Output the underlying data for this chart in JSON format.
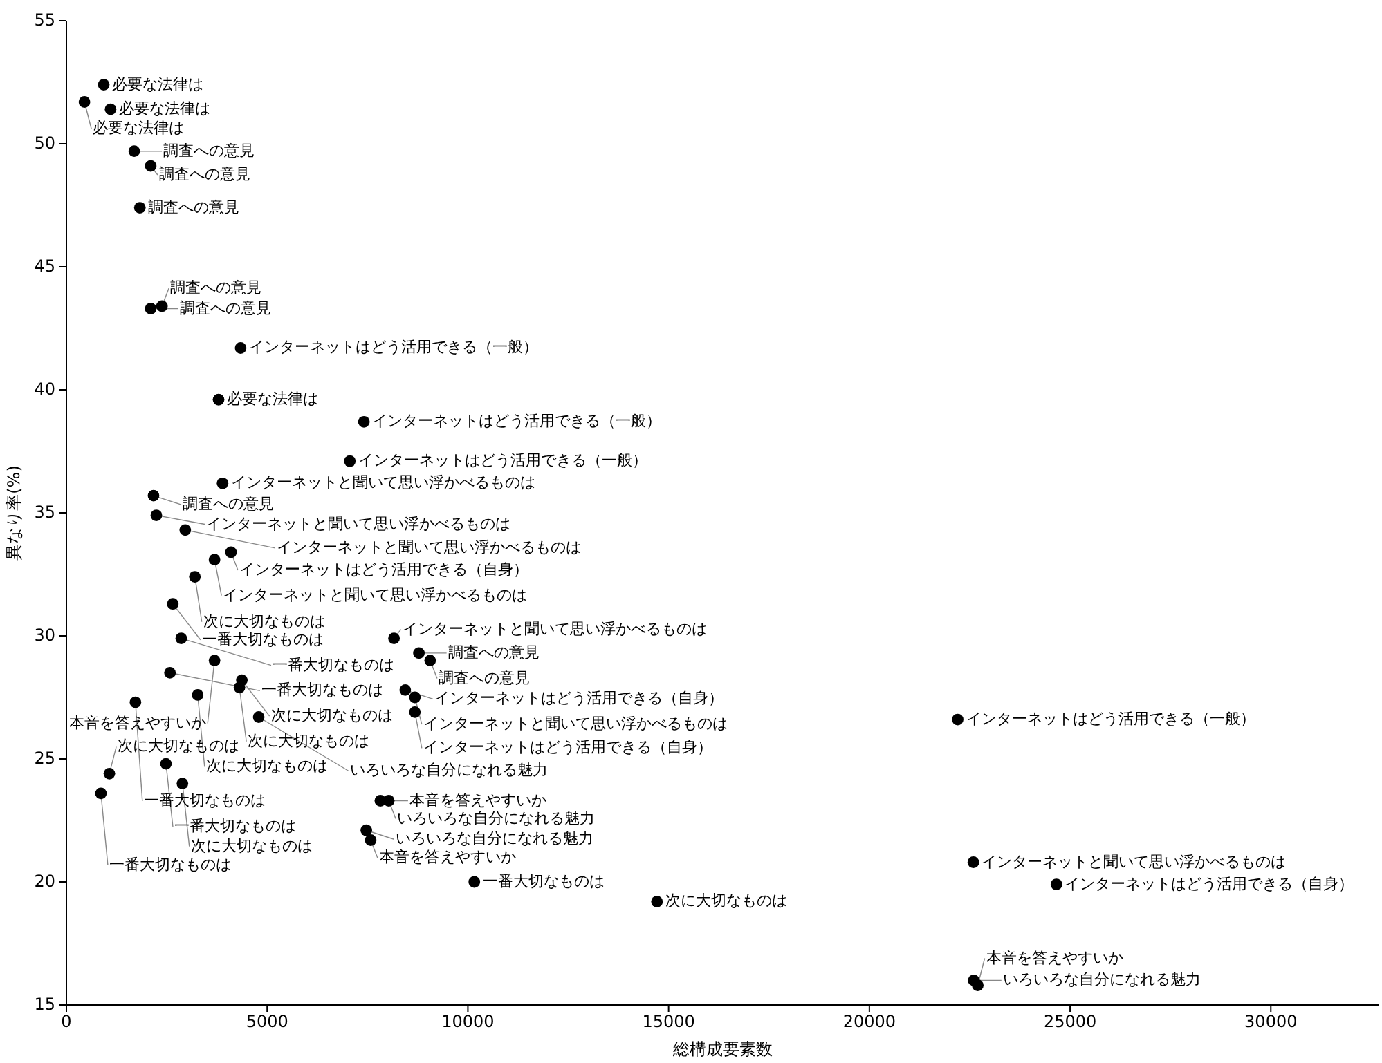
{
  "chart_data": {
    "type": "scatter",
    "xlabel": "総構成要素数",
    "ylabel": "異なり率(%)",
    "color": "#000000",
    "marker": "circle",
    "xlim": [
      0,
      32700
    ],
    "ylim": [
      15,
      55
    ],
    "xticks": [
      0,
      5000,
      10000,
      15000,
      20000,
      25000,
      30000
    ],
    "yticks": [
      15,
      20,
      25,
      30,
      35,
      40,
      45,
      50,
      55
    ],
    "x": [
      930,
      450,
      1100,
      1690,
      2100,
      1830,
      2100,
      2380,
      4340,
      3790,
      7410,
      7060,
      3890,
      2170,
      2240,
      2960,
      4100,
      3690,
      3200,
      2650,
      2860,
      8160,
      8780,
      9060,
      3690,
      2580,
      4370,
      4310,
      8440,
      3270,
      1720,
      8680,
      8680,
      4790,
      2480,
      1070,
      2890,
      860,
      7820,
      8030,
      7470,
      7580,
      10160,
      14710,
      22200,
      22590,
      24660,
      22600,
      22700
    ],
    "values": [
      52.4,
      51.7,
      51.4,
      49.7,
      49.1,
      47.4,
      43.3,
      43.4,
      41.7,
      39.6,
      38.7,
      37.1,
      36.2,
      35.7,
      34.9,
      34.3,
      33.4,
      33.1,
      32.4,
      31.3,
      29.9,
      29.9,
      29.3,
      29.0,
      29.0,
      28.5,
      28.2,
      27.9,
      27.8,
      27.6,
      27.3,
      27.5,
      26.9,
      26.7,
      24.8,
      24.4,
      24.0,
      23.6,
      23.3,
      23.3,
      22.1,
      21.7,
      20.0,
      19.2,
      26.6,
      20.8,
      19.9,
      16.0,
      15.8
    ],
    "annotations": [
      {
        "text": "必要な法律は",
        "x": 930,
        "y": 52.4
      },
      {
        "text": "必要な法律は",
        "x": 450,
        "y": 51.7
      },
      {
        "text": "必要な法律は",
        "x": 1100,
        "y": 51.4
      },
      {
        "text": "調査への意見",
        "x": 1690,
        "y": 49.7
      },
      {
        "text": "調査への意見",
        "x": 2100,
        "y": 49.1
      },
      {
        "text": "調査への意見",
        "x": 1830,
        "y": 47.4
      },
      {
        "text": "調査への意見",
        "x": 2100,
        "y": 43.3
      },
      {
        "text": "調査への意見",
        "x": 2380,
        "y": 43.4
      },
      {
        "text": "インターネットはどう活用できる（一般）",
        "x": 4340,
        "y": 41.7
      },
      {
        "text": "必要な法律は",
        "x": 3790,
        "y": 39.6
      },
      {
        "text": "インターネットはどう活用できる（一般）",
        "x": 7410,
        "y": 38.7
      },
      {
        "text": "インターネットはどう活用できる（一般）",
        "x": 7060,
        "y": 37.1
      },
      {
        "text": "インターネットと聞いて思い浮かべるものは",
        "x": 3890,
        "y": 36.2
      },
      {
        "text": "調査への意見",
        "x": 2170,
        "y": 35.7
      },
      {
        "text": "インターネットと聞いて思い浮かべるものは",
        "x": 2240,
        "y": 34.9
      },
      {
        "text": "インターネットと聞いて思い浮かべるものは",
        "x": 2960,
        "y": 34.3
      },
      {
        "text": "インターネットはどう活用できる（自身）",
        "x": 4100,
        "y": 33.4
      },
      {
        "text": "インターネットと聞いて思い浮かべるものは",
        "x": 3690,
        "y": 33.1
      },
      {
        "text": "次に大切なものは",
        "x": 3200,
        "y": 32.4
      },
      {
        "text": "一番大切なものは",
        "x": 2650,
        "y": 31.3
      },
      {
        "text": "一番大切なものは",
        "x": 2860,
        "y": 29.9
      },
      {
        "text": "インターネットと聞いて思い浮かべるものは",
        "x": 8160,
        "y": 29.9
      },
      {
        "text": "調査への意見",
        "x": 8780,
        "y": 29.3
      },
      {
        "text": "調査への意見",
        "x": 9060,
        "y": 29.0
      },
      {
        "text": "本音を答えやすいか",
        "x": 3690,
        "y": 29.0
      },
      {
        "text": "一番大切なものは",
        "x": 2580,
        "y": 28.5
      },
      {
        "text": "次に大切なものは",
        "x": 4370,
        "y": 28.2
      },
      {
        "text": "次に大切なものは",
        "x": 4310,
        "y": 27.9
      },
      {
        "text": "インターネットはどう活用できる（自身）",
        "x": 8440,
        "y": 27.8
      },
      {
        "text": "次に大切なものは",
        "x": 3270,
        "y": 27.6
      },
      {
        "text": "一番大切なものは",
        "x": 1720,
        "y": 27.3
      },
      {
        "text": "インターネットと聞いて思い浮かべるものは",
        "x": 8680,
        "y": 27.5
      },
      {
        "text": "インターネットはどう活用できる（自身）",
        "x": 8680,
        "y": 26.9
      },
      {
        "text": "いろいろな自分になれる魅力",
        "x": 4790,
        "y": 26.7
      },
      {
        "text": "一番大切なものは",
        "x": 2480,
        "y": 24.8
      },
      {
        "text": "次に大切なものは",
        "x": 1070,
        "y": 24.4
      },
      {
        "text": "次に大切なものは",
        "x": 2890,
        "y": 24.0
      },
      {
        "text": "一番大切なものは",
        "x": 860,
        "y": 23.6
      },
      {
        "text": "本音を答えやすいか",
        "x": 7820,
        "y": 23.3
      },
      {
        "text": "いろいろな自分になれる魅力",
        "x": 8030,
        "y": 23.3
      },
      {
        "text": "いろいろな自分になれる魅力",
        "x": 7470,
        "y": 22.1
      },
      {
        "text": "本音を答えやすいか",
        "x": 7580,
        "y": 21.7
      },
      {
        "text": "一番大切なものは",
        "x": 10160,
        "y": 20.0
      },
      {
        "text": "次に大切なものは",
        "x": 14710,
        "y": 19.2
      },
      {
        "text": "インターネットはどう活用できる（一般）",
        "x": 22200,
        "y": 26.6
      },
      {
        "text": "インターネットと聞いて思い浮かべるものは",
        "x": 22590,
        "y": 20.8
      },
      {
        "text": "インターネットはどう活用できる（自身）",
        "x": 24660,
        "y": 19.9
      },
      {
        "text": "いろいろな自分になれる魅力",
        "x": 22600,
        "y": 16.0
      },
      {
        "text": "本音を答えやすいか",
        "x": 22700,
        "y": 15.8
      }
    ]
  }
}
